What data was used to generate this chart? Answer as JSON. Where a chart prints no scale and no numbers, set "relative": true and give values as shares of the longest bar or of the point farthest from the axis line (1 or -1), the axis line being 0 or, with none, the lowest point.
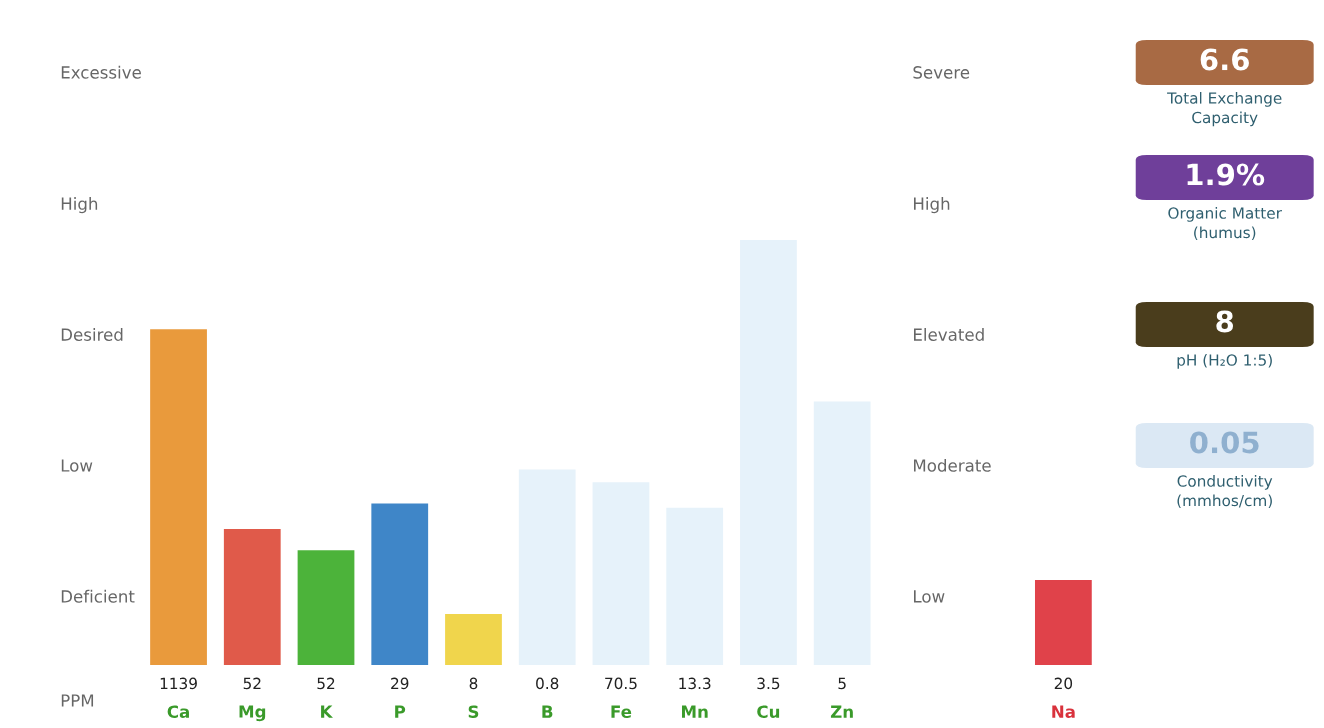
{
  "chart_data": [
    {
      "type": "bar",
      "relative": true,
      "categories": [
        "1139\nCa",
        "52\nMg",
        "52\nK",
        "29\nP",
        "8\nS",
        "0.8\nB",
        "70.5\nFe",
        "13.3\nMn",
        "3.5\nCu",
        "5\nZn",
        null,
        null,
        "20\nNa"
      ],
      "values": [
        0.79,
        0.32,
        0.27,
        0.38,
        0.12,
        0.46,
        0.43,
        0.37,
        1,
        0.62,
        null,
        null,
        0.2
      ],
      "colors": [
        "#e99a3c",
        "#e05a4a",
        "#4cb33a",
        "#3f86c8",
        "#f0d54c",
        "#e6f2fa",
        "#e6f2fa",
        "#e6f2fa",
        "#e6f2fa",
        "#e6f2fa",
        null,
        null,
        "#e0424a"
      ],
      "annotations": [
        "Excessive",
        "High",
        "Desired",
        "Low",
        "Deficient",
        "Severe",
        "High",
        "Elevated",
        "Moderate",
        "Low",
        "PPM"
      ],
      "legend": false
    },
    {
      "type": "other",
      "colors": [
        "#a86a44",
        "#6f3f9a",
        "#4a3d1c",
        "#dbe8f4"
      ],
      "annotations": [
        "6.6",
        "Total Exchange\nCapacity",
        "1.9%",
        "Organic Matter\n(humus)",
        "8",
        "pH (H₂O 1:5)",
        "0.05",
        "Conductivity\n(mmhos/cm)"
      ]
    }
  ]
}
